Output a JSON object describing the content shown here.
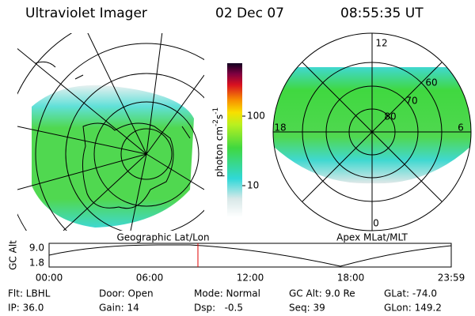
{
  "header": {
    "title": "Ultraviolet Imager",
    "date": "02 Dec 07",
    "time": "08:55:35 UT"
  },
  "colorbar": {
    "ticks": [
      "100",
      "10"
    ],
    "unit": [
      "photon cm",
      "-2",
      "s",
      "-1"
    ]
  },
  "geo_map": {
    "caption": "Geographic Lat/Lon"
  },
  "polar_map": {
    "caption": "Apex MLat/MLT",
    "mlt_labels": [
      "12",
      "18",
      "6",
      "0"
    ],
    "mlat_labels": [
      "60",
      "70",
      "80"
    ]
  },
  "timeline": {
    "axis_label": "GC Alt",
    "y_labels": [
      "9.0",
      "1.8"
    ],
    "time_labels": [
      "00:00",
      "06:00",
      "12:00",
      "18:00",
      "23:59"
    ]
  },
  "footer": {
    "rows": [
      [
        "Flt: LBHL",
        "Door: Open",
        "Mode: Normal",
        "GC Alt: 9.0 Re",
        "GLat: -74.0"
      ],
      [
        "IP: 36.0",
        "Gain: 14",
        "Dsp:   -0.5",
        "Seq: 39",
        "GLon: 149.2"
      ]
    ]
  }
}
